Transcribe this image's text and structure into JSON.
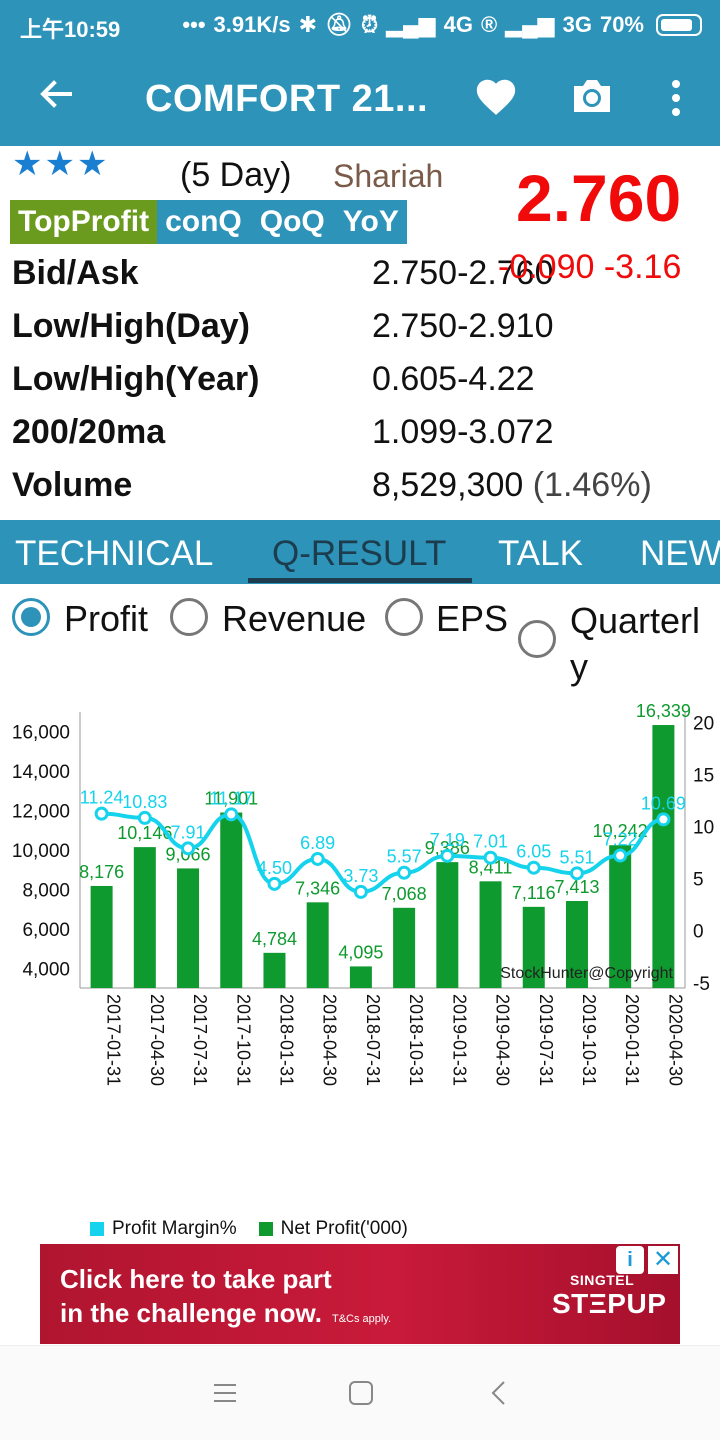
{
  "status_bar": {
    "time": "上午10:59",
    "network_speed": "3.91K/s",
    "signal_1": "4G",
    "signal_2": "3G",
    "battery": "70%"
  },
  "app_bar": {
    "title": "COMFORT 21...",
    "icons": [
      "back-arrow-icon",
      "heart-icon",
      "camera-icon",
      "more-vert-icon"
    ]
  },
  "stock": {
    "stars": "★★★",
    "period": "(5 Day)",
    "shariah": "Shariah",
    "price": "2.760",
    "change": "-0.090 -3.16",
    "price_color": "#f00a0a"
  },
  "tags": {
    "top_profit": "TopProfit",
    "con_q": "conQ",
    "qoq": "QoQ",
    "yoy": "YoY"
  },
  "info": [
    {
      "label": "Bid/Ask",
      "value": "2.750-2.760"
    },
    {
      "label": "Low/High(Day)",
      "value": "2.750-2.910"
    },
    {
      "label": "Low/High(Year)",
      "value": "0.605-4.22"
    },
    {
      "label": "200/20ma",
      "value": "1.099-3.072"
    },
    {
      "label": "Volume",
      "value": "8,529,300",
      "extra": "(1.46%)"
    }
  ],
  "tabs": [
    "TECHNICAL",
    "Q-RESULT",
    "TALK",
    "NEWS"
  ],
  "active_tab": "Q-RESULT",
  "radio_options": [
    {
      "label": "Profit",
      "checked": true
    },
    {
      "label": "Revenue",
      "checked": false
    },
    {
      "label": "EPS",
      "checked": false
    },
    {
      "label": "Quarterly",
      "checked": false
    }
  ],
  "chart_data": {
    "type": "bar",
    "categories": [
      "2017-01-31",
      "2017-04-30",
      "2017-07-31",
      "2017-10-31",
      "2018-01-31",
      "2018-04-30",
      "2018-07-31",
      "2018-10-31",
      "2019-01-31",
      "2019-04-30",
      "2019-07-31",
      "2019-10-31",
      "2020-01-31",
      "2020-04-30"
    ],
    "series": [
      {
        "name": "Net Profit('000)",
        "type": "bar",
        "axis": "left",
        "color": "#0e9a2e",
        "values": [
          8176,
          10146,
          9066,
          11901,
          4784,
          7346,
          4095,
          7068,
          9386,
          8411,
          7116,
          7413,
          10242,
          16339
        ],
        "labels": [
          "8,176",
          "10,146",
          "9,066",
          "11,901",
          "4,784",
          "7,346",
          "4,095",
          "7,068",
          "9,386",
          "8,411",
          "7,116",
          "7,413",
          "10,242",
          "16,339"
        ]
      },
      {
        "name": "Profit Margin%",
        "type": "line",
        "axis": "right",
        "color": "#15d3ec",
        "values": [
          11.24,
          10.83,
          7.91,
          11.17,
          4.5,
          6.89,
          3.73,
          5.57,
          7.19,
          7.01,
          6.05,
          5.51,
          7.22,
          10.69
        ],
        "labels": [
          "11.24",
          "10.83",
          "7.91",
          "11.17",
          "4.50",
          "6.89",
          "3.73",
          "5.57",
          "7.19",
          "7.01",
          "6.05",
          "5.51",
          "7.22",
          "10.69"
        ]
      }
    ],
    "left_axis": {
      "ticks": [
        "16,000",
        "14,000",
        "12,000",
        "10,000",
        "8,000",
        "6,000",
        "4,000"
      ],
      "tick_values": [
        16000,
        14000,
        12000,
        10000,
        8000,
        6000,
        4000
      ],
      "range": [
        3000,
        17000
      ]
    },
    "right_axis": {
      "ticks": [
        "20",
        "15",
        "10",
        "5",
        "0",
        "-5"
      ],
      "tick_values": [
        20,
        15,
        10,
        5,
        0,
        -5
      ],
      "range": [
        -5.5,
        21
      ]
    },
    "watermark": "StockHunter@Copyright",
    "legend": "bottom",
    "grid": false
  },
  "ad": {
    "line1": "Click here to take part",
    "line2": "in the challenge now.",
    "tc": "T&Cs apply.",
    "brand_top": "SINGTEL",
    "brand_main": "STΞPUP"
  },
  "nav_icons": [
    "recents-icon",
    "home-icon",
    "back-icon"
  ]
}
